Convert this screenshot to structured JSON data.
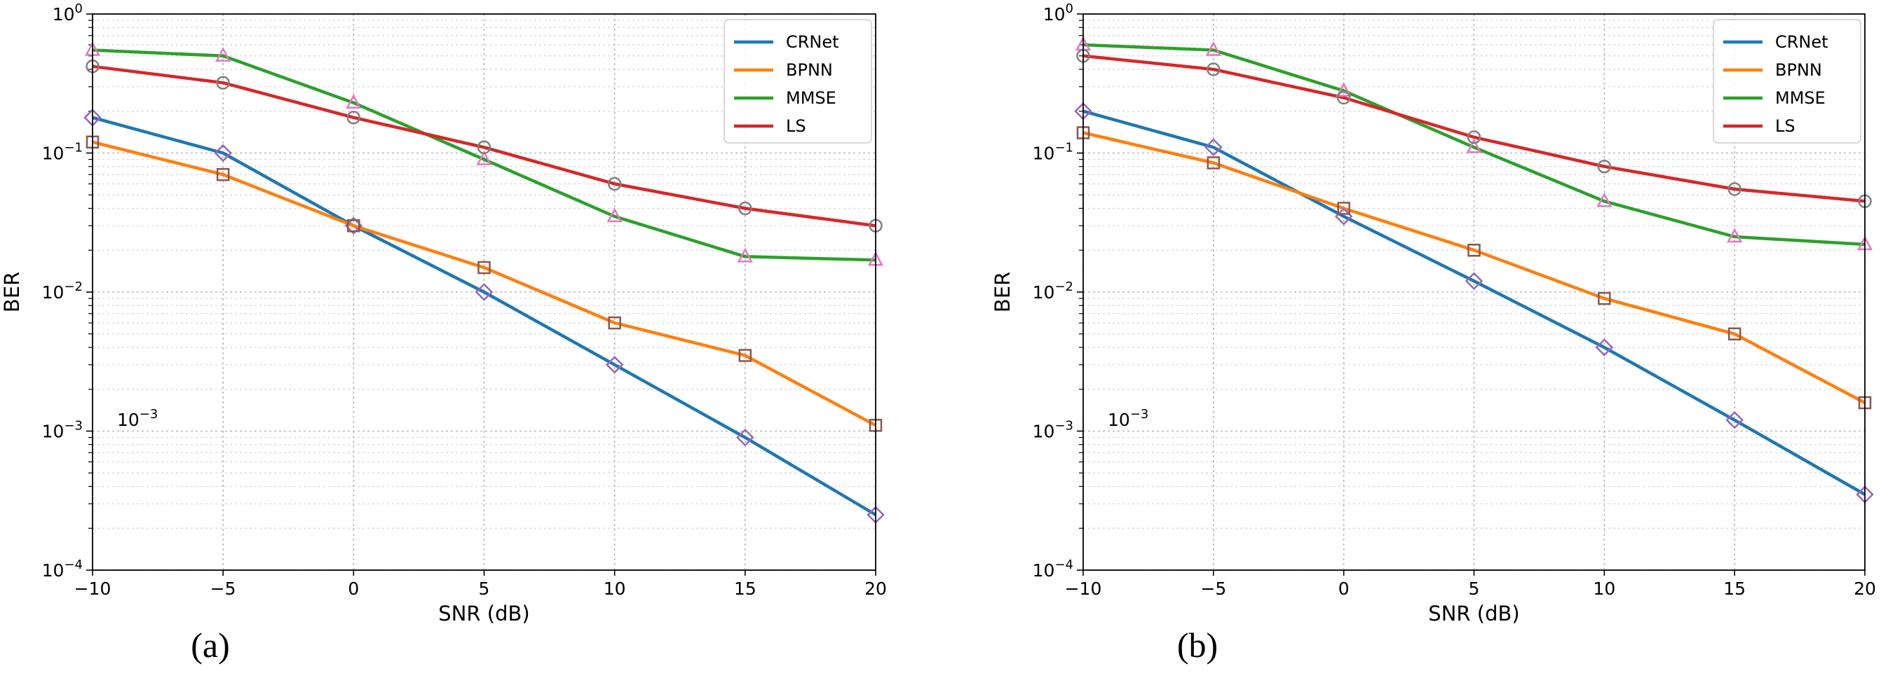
{
  "chart_data": [
    {
      "type": "line",
      "caption": "(a)",
      "xlabel": "SNR (dB)",
      "ylabel": "BER",
      "xlim": [
        -10,
        20
      ],
      "ylim": [
        0.0001,
        1
      ],
      "yscale": "log",
      "grid": true,
      "legend_position": "top-right",
      "x": [
        -10,
        -5,
        0,
        5,
        10,
        15,
        20
      ],
      "xticks": [
        "−10",
        "−5",
        "0",
        "5",
        "10",
        "15",
        "20"
      ],
      "yticks": [
        {
          "base": "10",
          "exp": "0"
        },
        {
          "base": "10",
          "exp": "−1"
        },
        {
          "base": "10",
          "exp": "−2"
        },
        {
          "base": "10",
          "exp": "−3"
        },
        {
          "base": "10",
          "exp": "−4"
        }
      ],
      "annotation": {
        "base": "10",
        "exp": "−3"
      },
      "series": [
        {
          "name": "CRNet",
          "color": "#1f77b4",
          "marker": "diamond",
          "values": [
            0.18,
            0.1,
            0.03,
            0.01,
            0.003,
            0.0009,
            0.00025
          ]
        },
        {
          "name": "BPNN",
          "color": "#ff7f0e",
          "marker": "square",
          "values": [
            0.12,
            0.07,
            0.03,
            0.015,
            0.006,
            0.0035,
            0.0011
          ]
        },
        {
          "name": "MMSE",
          "color": "#2ca02c",
          "marker": "triangle",
          "values": [
            0.55,
            0.5,
            0.23,
            0.09,
            0.035,
            0.018,
            0.017
          ]
        },
        {
          "name": "LS",
          "color": "#d62728",
          "marker": "circle",
          "values": [
            0.42,
            0.32,
            0.18,
            0.11,
            0.06,
            0.04,
            0.03
          ]
        }
      ]
    },
    {
      "type": "line",
      "caption": "(b)",
      "xlabel": "SNR (dB)",
      "ylabel": "BER",
      "xlim": [
        -10,
        20
      ],
      "ylim": [
        0.0001,
        1
      ],
      "yscale": "log",
      "grid": true,
      "legend_position": "top-right",
      "x": [
        -10,
        -5,
        0,
        5,
        10,
        15,
        20
      ],
      "xticks": [
        "−10",
        "−5",
        "0",
        "5",
        "10",
        "15",
        "20"
      ],
      "yticks": [
        {
          "base": "10",
          "exp": "0"
        },
        {
          "base": "10",
          "exp": "−1"
        },
        {
          "base": "10",
          "exp": "−2"
        },
        {
          "base": "10",
          "exp": "−3"
        },
        {
          "base": "10",
          "exp": "−4"
        }
      ],
      "annotation": {
        "base": "10",
        "exp": "−3"
      },
      "series": [
        {
          "name": "CRNet",
          "color": "#1f77b4",
          "marker": "diamond",
          "values": [
            0.2,
            0.11,
            0.035,
            0.012,
            0.004,
            0.0012,
            0.00035
          ]
        },
        {
          "name": "BPNN",
          "color": "#ff7f0e",
          "marker": "square",
          "values": [
            0.14,
            0.085,
            0.04,
            0.02,
            0.009,
            0.005,
            0.0016
          ]
        },
        {
          "name": "MMSE",
          "color": "#2ca02c",
          "marker": "triangle",
          "values": [
            0.6,
            0.55,
            0.28,
            0.11,
            0.045,
            0.025,
            0.022
          ]
        },
        {
          "name": "LS",
          "color": "#d62728",
          "marker": "circle",
          "values": [
            0.5,
            0.4,
            0.25,
            0.13,
            0.08,
            0.055,
            0.045
          ]
        }
      ]
    }
  ]
}
